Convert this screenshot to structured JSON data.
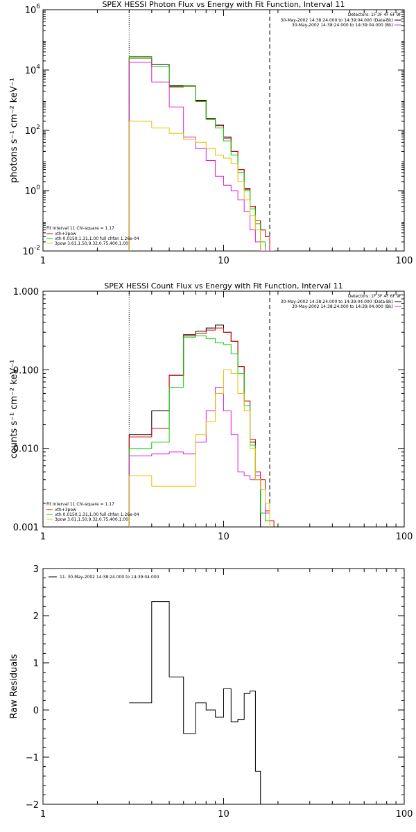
{
  "chart_data": [
    {
      "type": "line",
      "title": "SPEX HESSI Photon Flux vs Energy with Fit Function, Interval 11",
      "ylabel": "photons s⁻¹ cm⁻² keV⁻¹",
      "xlabel": "",
      "xscale": "log",
      "yscale": "log",
      "xlim": [
        1,
        100
      ],
      "ylim": [
        0.01,
        1000000
      ],
      "x_ticks": [
        "1",
        "10",
        "100"
      ],
      "y_ticks": [
        {
          "base": "10",
          "exp": "6",
          "value": 1000000
        },
        {
          "base": "10",
          "exp": "4",
          "value": 10000
        },
        {
          "base": "10",
          "exp": "2",
          "value": 100
        },
        {
          "base": "10",
          "exp": "0",
          "value": 1
        },
        {
          "base": "10",
          "exp": "-2",
          "value": 0.01
        }
      ],
      "vlines": [
        {
          "x": 3,
          "style": "dotted"
        },
        {
          "x": 18,
          "style": "dashed"
        }
      ],
      "bin_edges": [
        3,
        4,
        5,
        6,
        7,
        8,
        9,
        10,
        11,
        12,
        13,
        14,
        15,
        16,
        17,
        18,
        19,
        20,
        22
      ],
      "header": {
        "detectors": "Detectors: 1F 3F 4F 6F 9F",
        "lines": [
          {
            "text": "30-May-2002 14:38:24.000 to 14:39:04.000 (Data-Bk)",
            "color": "#000000"
          },
          {
            "text": "30-May-2002 14:38:24.000 to 14:39:04.000 (Bk)",
            "color": "#e020e0"
          }
        ]
      },
      "fit_legend": {
        "title": "Fit Interval 11   Chi-square = 1.17",
        "entries": [
          {
            "text": "vth+3pow",
            "color": "#e00000"
          },
          {
            "text": "vth 0.0150,1.31,1.00  full chfan 1.26e-04",
            "color": "#00d000"
          },
          {
            "text": "3pow 3.61,1.50,9.32,0.75,400,1.00",
            "color": "#e8c000"
          }
        ]
      },
      "series": [
        {
          "color": "#000000",
          "values": [
            25000,
            15000,
            3000,
            3000,
            1000,
            250,
            150,
            60,
            20,
            5,
            1.2,
            0.3,
            0.1,
            0.05,
            0.03,
            null,
            null,
            null
          ]
        },
        {
          "color": "#e00000",
          "values": [
            25000,
            13000,
            2800,
            2900,
            950,
            240,
            140,
            55,
            20,
            5,
            1.1,
            0.3,
            0.1,
            0.05,
            0.03,
            0.01,
            null,
            null
          ]
        },
        {
          "color": "#00d000",
          "values": [
            28000,
            13000,
            2700,
            3000,
            900,
            230,
            120,
            45,
            15,
            4,
            1.0,
            0.25,
            0.08,
            0.02,
            0.01,
            0.005,
            null,
            null
          ]
        },
        {
          "color": "#e020e0",
          "values": [
            18000,
            4000,
            600,
            60,
            25,
            10,
            3,
            1.5,
            1,
            0.5,
            0.2,
            0.05,
            0.02,
            0.01,
            0.01,
            0.01,
            null,
            null
          ]
        },
        {
          "color": "#e8c000",
          "values": [
            200,
            120,
            80,
            50,
            40,
            25,
            15,
            12,
            8,
            2,
            0.5,
            0.15,
            0.05,
            null,
            null,
            null,
            null,
            null
          ]
        }
      ]
    },
    {
      "type": "line",
      "title": "SPEX HESSI Count Flux vs Energy with Fit Function, Interval 11",
      "ylabel": "counts s⁻¹ cm⁻² keV⁻¹",
      "xlabel": "",
      "xscale": "log",
      "yscale": "log",
      "xlim": [
        1,
        100
      ],
      "ylim": [
        0.001,
        1
      ],
      "x_ticks": [
        "1",
        "10",
        "100"
      ],
      "y_ticks": [
        {
          "base": "1.000",
          "value": 1
        },
        {
          "base": "0.100",
          "value": 0.1
        },
        {
          "base": "0.010",
          "value": 0.01
        },
        {
          "base": "0.001",
          "value": 0.001
        }
      ],
      "vlines": [
        {
          "x": 3,
          "style": "dotted"
        },
        {
          "x": 18,
          "style": "dashed"
        }
      ],
      "bin_edges": [
        3,
        4,
        5,
        6,
        7,
        8,
        9,
        10,
        11,
        12,
        13,
        14,
        15,
        16,
        17,
        18,
        19,
        20,
        22
      ],
      "header": {
        "detectors": "Detectors: 1F 3F 4F 6F 9F",
        "lines": [
          {
            "text": "30-May-2002 14:38:24.000 to 14:39:04.000 (Data-Bk)",
            "color": "#000000"
          },
          {
            "text": "30-May-2002 14:38:24.000 to 14:39:04.000 (Bk)",
            "color": "#e020e0"
          }
        ]
      },
      "fit_legend": {
        "title": "Fit Interval 11   Chi-square = 1.17",
        "entries": [
          {
            "text": "vth+3pow",
            "color": "#e00000"
          },
          {
            "text": "vth 0.0150,1.31,1.00  full chfan 1.26e-04",
            "color": "#00d000"
          },
          {
            "text": "3pow 3.61,1.50,9.32,0.75,400,1.00",
            "color": "#e8c000"
          }
        ]
      },
      "series": [
        {
          "color": "#000000",
          "values": [
            0.015,
            0.03,
            0.085,
            0.28,
            0.31,
            0.34,
            0.37,
            0.3,
            0.23,
            0.11,
            0.04,
            0.012,
            0.004,
            null,
            null,
            null,
            null,
            null
          ]
        },
        {
          "color": "#e00000",
          "values": [
            0.014,
            0.018,
            0.085,
            0.27,
            0.29,
            0.32,
            0.34,
            0.3,
            0.23,
            0.11,
            0.04,
            0.013,
            0.005,
            0.004,
            0.0016,
            0.0012,
            null,
            null
          ]
        },
        {
          "color": "#00d000",
          "values": [
            0.01,
            0.012,
            0.06,
            0.26,
            0.27,
            0.25,
            0.22,
            0.21,
            0.16,
            0.09,
            0.035,
            0.011,
            0.004,
            0.0015,
            0.0012,
            null,
            null,
            null
          ]
        },
        {
          "color": "#e020e0",
          "values": [
            0.008,
            0.0085,
            0.009,
            0.0085,
            0.012,
            0.03,
            0.06,
            0.03,
            0.015,
            0.005,
            0.0045,
            0.004,
            0.0045,
            0.003,
            0.0015,
            null,
            null,
            null
          ]
        },
        {
          "color": "#e8c000",
          "values": [
            0.0045,
            0.0033,
            0.0033,
            0.0033,
            0.015,
            0.022,
            0.05,
            0.1,
            0.09,
            0.05,
            0.03,
            0.01,
            0.004,
            0.003,
            0.002,
            null,
            null,
            null
          ]
        }
      ]
    },
    {
      "type": "line",
      "title": "",
      "ylabel": "Raw Residuals",
      "xlabel": "",
      "xscale": "log",
      "yscale": "linear",
      "xlim": [
        1,
        100
      ],
      "ylim": [
        -2,
        3
      ],
      "x_ticks": [
        "1",
        "10",
        "100"
      ],
      "y_ticks": [
        {
          "base": "3",
          "value": 3
        },
        {
          "base": "2",
          "value": 2
        },
        {
          "base": "1",
          "value": 1
        },
        {
          "base": "0",
          "value": 0
        },
        {
          "base": "−1",
          "value": -1
        },
        {
          "base": "−2",
          "value": -2
        }
      ],
      "bin_edges": [
        3,
        4,
        5,
        6,
        7,
        8,
        9,
        10,
        11,
        12,
        13,
        14,
        15,
        16,
        17,
        18
      ],
      "legend": {
        "text": "11. 30-May-2002 14:38:24.000 to 14:39:04.000",
        "color": "#000000"
      },
      "series": [
        {
          "color": "#000000",
          "values": [
            0.15,
            2.3,
            0.7,
            -0.5,
            0.15,
            0.0,
            -0.15,
            0.45,
            -0.25,
            -0.2,
            0.35,
            0.4,
            -1.3,
            -2.0,
            -2.0
          ]
        }
      ]
    }
  ]
}
